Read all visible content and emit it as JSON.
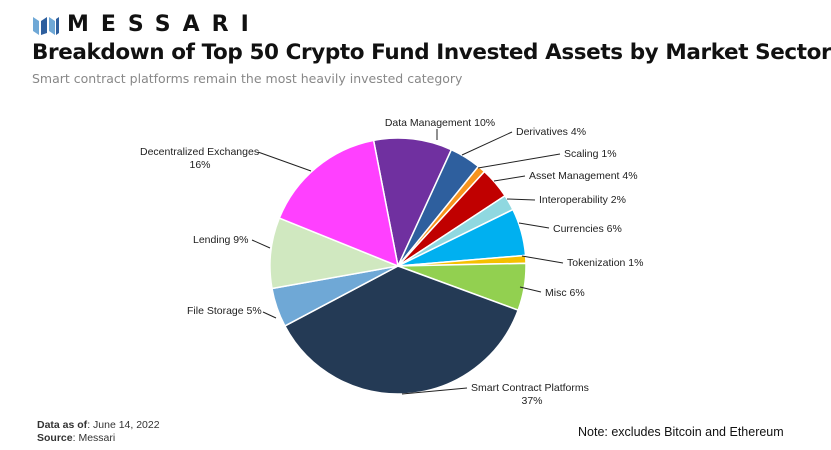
{
  "brand": {
    "name": "MESSARI",
    "logo_colors": [
      "#6fa8d6",
      "#2e5f9e"
    ]
  },
  "header": {
    "title": "Breakdown of Top 50 Crypto Fund Invested Assets by Market Sector",
    "subtitle": "Smart contract platforms remain the most heavily invested category"
  },
  "footer": {
    "data_as_of_label": "Data as of",
    "data_as_of_value": ": June 14, 2022",
    "source_label": "Source",
    "source_value": ": Messari",
    "note": "Note: excludes Bitcoin and Ethereum"
  },
  "chart_data": {
    "type": "pie",
    "title": "",
    "unit": "%",
    "order": "clockwise",
    "slices": [
      {
        "label": "Data Management",
        "value": 10,
        "display": "10%",
        "color": "#7030a0"
      },
      {
        "label": "Derivatives",
        "value": 4,
        "display": "4%",
        "color": "#2e5f9e"
      },
      {
        "label": "Scaling",
        "value": 1,
        "display": "1%",
        "color": "#f7941d"
      },
      {
        "label": "Asset Management",
        "value": 4,
        "display": "4%",
        "color": "#c00000"
      },
      {
        "label": "Interoperability",
        "value": 2,
        "display": "2%",
        "color": "#8fd8e0"
      },
      {
        "label": "Currencies",
        "value": 6,
        "display": "6%",
        "color": "#00b0f0"
      },
      {
        "label": "Tokenization",
        "value": 1,
        "display": "1%",
        "color": "#f5c000"
      },
      {
        "label": "Misc",
        "value": 6,
        "display": "6%",
        "color": "#92d050"
      },
      {
        "label": "Smart Contract Platforms",
        "value": 37,
        "display": "37%",
        "color": "#243a55"
      },
      {
        "label": "File Storage",
        "value": 5,
        "display": "5%",
        "color": "#6fa8d6"
      },
      {
        "label": "Lending",
        "value": 9,
        "display": "9%",
        "color": "#d0e8c0"
      },
      {
        "label": "Decentralized Exchanges",
        "value": 16,
        "display": "16%",
        "color": "#ff40ff"
      }
    ]
  }
}
